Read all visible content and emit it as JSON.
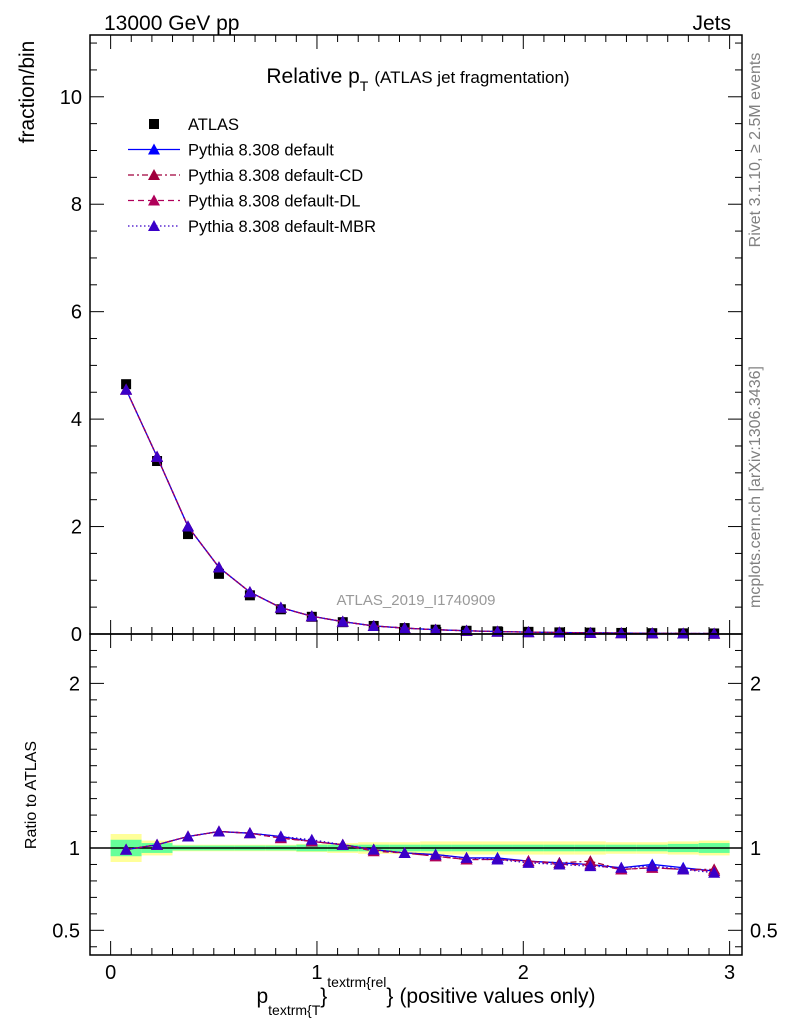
{
  "header": {
    "left": "13000 GeV pp",
    "right": "Jets"
  },
  "title": {
    "main": "Relative p",
    "sub": "T",
    "paren": "(ATLAS jet fragmentation)"
  },
  "side_labels": {
    "rivet": "Rivet 3.1.10, ≥ 2.5M events",
    "mcplots": "mcplots.cern.ch [arXiv:1306.3436]"
  },
  "watermark": "ATLAS_2019_I1740909",
  "xlabel": {
    "p": "p",
    "sub": "textrm{T",
    "brace1": "}",
    "sup": "textrm{rel",
    "brace2": "}",
    "rest": "(positive values only)"
  },
  "chart_data": [
    {
      "type": "scatter",
      "ylabel": "fraction/bin",
      "xlim": [
        -0.1,
        3.06
      ],
      "ylim": [
        0,
        11.15
      ],
      "xticks": [
        0,
        1,
        2,
        3
      ],
      "yticks": [
        0,
        2,
        4,
        6,
        8,
        10
      ],
      "ytick_labels": [
        "0",
        "2",
        "4",
        "6",
        "8",
        "10"
      ],
      "x": [
        0.075,
        0.225,
        0.375,
        0.525,
        0.675,
        0.825,
        0.975,
        1.125,
        1.275,
        1.425,
        1.575,
        1.725,
        1.875,
        2.025,
        2.175,
        2.325,
        2.475,
        2.625,
        2.775,
        2.925
      ],
      "legend": [
        "ATLAS",
        "Pythia 8.308 default",
        "Pythia 8.308 default-CD",
        "Pythia 8.308 default-DL",
        "Pythia 8.308 default-MBR"
      ],
      "series": [
        {
          "name": "ATLAS",
          "color": "#000000",
          "marker": "square",
          "values": [
            4.65,
            3.22,
            1.86,
            1.12,
            0.72,
            0.46,
            0.32,
            0.22,
            0.15,
            0.11,
            0.08,
            0.06,
            0.05,
            0.04,
            0.03,
            0.025,
            0.02,
            0.015,
            0.012,
            0.01
          ]
        },
        {
          "name": "Pythia 8.308 default",
          "color": "#0000ff",
          "dash": "",
          "marker": "triangle",
          "values": [
            4.55,
            3.3,
            2.0,
            1.24,
            0.78,
            0.49,
            0.33,
            0.23,
            0.15,
            0.11,
            0.08,
            0.06,
            0.045,
            0.035,
            0.027,
            0.022,
            0.017,
            0.013,
            0.01,
            0.008
          ]
        },
        {
          "name": "Pythia 8.308 default-CD",
          "color": "#a0003c",
          "dash": "6,3,2,3",
          "marker": "triangle",
          "values": [
            4.55,
            3.3,
            2.0,
            1.24,
            0.78,
            0.49,
            0.33,
            0.23,
            0.15,
            0.11,
            0.08,
            0.06,
            0.045,
            0.035,
            0.027,
            0.022,
            0.017,
            0.013,
            0.01,
            0.008
          ]
        },
        {
          "name": "Pythia 8.308 default-DL",
          "color": "#b0005a",
          "dash": "6,4",
          "marker": "triangle",
          "values": [
            4.55,
            3.3,
            2.0,
            1.24,
            0.78,
            0.49,
            0.33,
            0.23,
            0.15,
            0.11,
            0.08,
            0.06,
            0.045,
            0.035,
            0.027,
            0.022,
            0.017,
            0.013,
            0.01,
            0.008
          ]
        },
        {
          "name": "Pythia 8.308 default-MBR",
          "color": "#3a00c8",
          "dash": "1.5,2.5",
          "marker": "triangle",
          "values": [
            4.55,
            3.3,
            2.0,
            1.24,
            0.78,
            0.49,
            0.33,
            0.23,
            0.15,
            0.11,
            0.08,
            0.06,
            0.045,
            0.035,
            0.027,
            0.022,
            0.017,
            0.013,
            0.01,
            0.008
          ]
        }
      ]
    },
    {
      "type": "scatter",
      "ylabel": "Ratio to ATLAS",
      "xlim": [
        -0.1,
        3.06
      ],
      "ylim": [
        0.35,
        2.3
      ],
      "xticks": [
        0,
        1,
        2,
        3
      ],
      "xtick_labels": [
        "0",
        "1",
        "2",
        "3"
      ],
      "yticks": [
        0.5,
        1,
        2
      ],
      "ytick_labels": [
        "0.5",
        "1",
        "2"
      ],
      "x": [
        0.075,
        0.225,
        0.375,
        0.525,
        0.675,
        0.825,
        0.975,
        1.125,
        1.275,
        1.425,
        1.575,
        1.725,
        1.875,
        2.025,
        2.175,
        2.325,
        2.475,
        2.625,
        2.775,
        2.925
      ],
      "bands": {
        "edges": [
          0.0,
          0.15,
          0.3,
          0.45,
          0.6,
          0.75,
          0.9,
          1.05,
          1.2,
          1.35,
          1.5,
          1.65,
          1.8,
          1.95,
          2.1,
          2.25,
          2.4,
          2.55,
          2.7,
          2.85,
          3.0
        ],
        "stat": [
          0.05,
          0.03,
          0.015,
          0.015,
          0.015,
          0.015,
          0.02,
          0.02,
          0.02,
          0.02,
          0.02,
          0.02,
          0.02,
          0.02,
          0.02,
          0.02,
          0.02,
          0.02,
          0.025,
          0.03
        ],
        "total": [
          0.085,
          0.045,
          0.02,
          0.02,
          0.02,
          0.02,
          0.025,
          0.03,
          0.035,
          0.035,
          0.04,
          0.04,
          0.04,
          0.04,
          0.04,
          0.04,
          0.035,
          0.035,
          0.04,
          0.045
        ],
        "stat_color": "#66ff99",
        "total_color": "#ffff99"
      },
      "series": [
        {
          "name": "Pythia 8.308 default",
          "color": "#0000ff",
          "dash": "",
          "marker": "triangle",
          "values": [
            0.99,
            1.02,
            1.07,
            1.1,
            1.09,
            1.07,
            1.04,
            1.02,
            0.99,
            0.97,
            0.96,
            0.94,
            0.94,
            0.92,
            0.91,
            0.9,
            0.88,
            0.9,
            0.88,
            0.86
          ]
        },
        {
          "name": "Pythia 8.308 default-CD",
          "color": "#a0003c",
          "dash": "6,3,2,3",
          "marker": "triangle",
          "values": [
            0.99,
            1.02,
            1.07,
            1.1,
            1.09,
            1.06,
            1.04,
            1.02,
            0.99,
            0.97,
            0.95,
            0.93,
            0.93,
            0.92,
            0.91,
            0.92,
            0.87,
            0.88,
            0.87,
            0.87
          ]
        },
        {
          "name": "Pythia 8.308 default-DL",
          "color": "#b0005a",
          "dash": "6,4",
          "marker": "triangle",
          "values": [
            0.99,
            1.02,
            1.07,
            1.1,
            1.09,
            1.06,
            1.04,
            1.02,
            0.98,
            0.97,
            0.95,
            0.93,
            0.93,
            0.92,
            0.9,
            0.9,
            0.87,
            0.88,
            0.87,
            0.86
          ]
        },
        {
          "name": "Pythia 8.308 default-MBR",
          "color": "#3a00c8",
          "dash": "1.5,2.5",
          "marker": "triangle",
          "values": [
            0.99,
            1.02,
            1.07,
            1.1,
            1.09,
            1.07,
            1.05,
            1.02,
            0.99,
            0.97,
            0.96,
            0.94,
            0.93,
            0.91,
            0.9,
            0.89,
            0.88,
            0.89,
            0.87,
            0.85
          ]
        }
      ]
    }
  ]
}
